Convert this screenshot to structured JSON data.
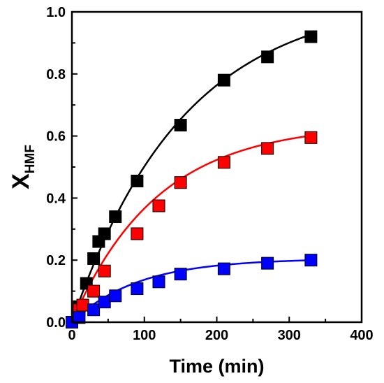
{
  "chart_data": {
    "type": "scatter",
    "xlabel": "Time (min)",
    "ylabel": {
      "main": "X",
      "sub": "HMF"
    },
    "xlim": [
      0,
      400
    ],
    "ylim": [
      0,
      1.0
    ],
    "x_ticks": [
      0,
      100,
      200,
      300,
      400
    ],
    "y_ticks": [
      0.0,
      0.2,
      0.4,
      0.6,
      0.8,
      1.0
    ],
    "x_tick_labels": [
      "0",
      "100",
      "200",
      "300",
      "400"
    ],
    "y_tick_labels": [
      "0.0",
      "0.2",
      "0.4",
      "0.6",
      "0.8",
      "1.0"
    ],
    "grid": false,
    "marker": "square",
    "series": [
      {
        "color": "#000000",
        "x": [
          0,
          10,
          20,
          30,
          37,
          45,
          60,
          90,
          150,
          210,
          270,
          330
        ],
        "y": [
          0.0,
          0.05,
          0.125,
          0.205,
          0.26,
          0.285,
          0.34,
          0.455,
          0.635,
          0.78,
          0.855,
          0.92
        ],
        "fit": {
          "a": 1.05,
          "k": 0.0065
        }
      },
      {
        "color": "#ff0000",
        "x": [
          0,
          10,
          15,
          30,
          45,
          90,
          120,
          150,
          210,
          270,
          330
        ],
        "y": [
          0.0,
          0.04,
          0.055,
          0.1,
          0.165,
          0.285,
          0.375,
          0.45,
          0.515,
          0.56,
          0.595
        ],
        "fit": {
          "a": 0.64,
          "k": 0.0085
        }
      },
      {
        "color": "#0000ff",
        "x": [
          0,
          10,
          30,
          45,
          60,
          90,
          120,
          150,
          210,
          270,
          330
        ],
        "y": [
          0.0,
          0.015,
          0.04,
          0.065,
          0.085,
          0.108,
          0.13,
          0.155,
          0.172,
          0.19,
          0.2
        ],
        "fit": {
          "a": 0.205,
          "k": 0.011
        }
      }
    ]
  }
}
